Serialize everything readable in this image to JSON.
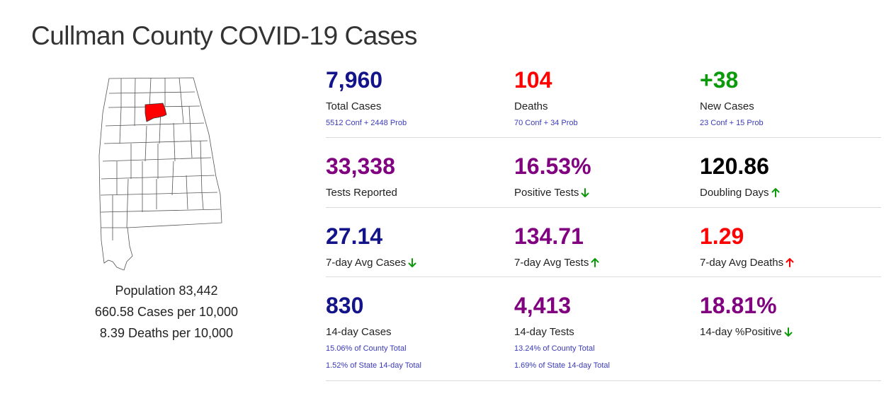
{
  "page": {
    "title": "Cullman County COVID-19 Cases"
  },
  "colors": {
    "navy": "#14148a",
    "red": "#ff0000",
    "green": "#0a9a0a",
    "purple": "#800080",
    "black": "#000000",
    "link": "#3a3ab8"
  },
  "map": {
    "highlighted_county": "Cullman",
    "highlight_color": "#ff0000"
  },
  "county": {
    "population": "Population 83,442",
    "cases_per_10k": "660.58 Cases per 10,000",
    "deaths_per_10k": "8.39 Deaths per 10,000"
  },
  "stats": {
    "total_cases": {
      "value": "7,960",
      "label": "Total Cases",
      "sub": "5512 Conf + 2448 Prob",
      "color": "#14148a"
    },
    "deaths": {
      "value": "104",
      "label": "Deaths",
      "sub": "70 Conf + 34 Prob",
      "color": "#ff0000"
    },
    "new_cases": {
      "value": "+38",
      "label": "New Cases",
      "sub": "23 Conf + 15 Prob",
      "color": "#0a9a0a"
    },
    "tests_reported": {
      "value": "33,338",
      "label": "Tests Reported",
      "color": "#800080"
    },
    "positive_tests": {
      "value": "16.53%",
      "label": "Positive Tests",
      "color": "#800080",
      "trend": "down",
      "trend_color": "#0a9a0a",
      "icon": "arrow-down-icon"
    },
    "doubling_days": {
      "value": "120.86",
      "label": "Doubling Days",
      "color": "#000000",
      "trend": "up",
      "trend_color": "#0a9a0a",
      "icon": "arrow-up-icon"
    },
    "avg_cases_7": {
      "value": "27.14",
      "label": "7-day Avg Cases",
      "color": "#14148a",
      "trend": "down",
      "trend_color": "#0a9a0a",
      "icon": "arrow-down-icon"
    },
    "avg_tests_7": {
      "value": "134.71",
      "label": "7-day Avg Tests",
      "color": "#800080",
      "trend": "up",
      "trend_color": "#0a9a0a",
      "icon": "arrow-up-icon"
    },
    "avg_deaths_7": {
      "value": "1.29",
      "label": "7-day Avg Deaths",
      "color": "#ff0000",
      "trend": "up",
      "trend_color": "#ff0000",
      "icon": "arrow-up-icon"
    },
    "cases_14": {
      "value": "830",
      "label": "14-day Cases",
      "sub1": "15.06% of County Total",
      "sub2": "1.52% of State 14-day Total",
      "color": "#14148a"
    },
    "tests_14": {
      "value": "4,413",
      "label": "14-day Tests",
      "sub1": "13.24% of County Total",
      "sub2": "1.69% of State 14-day Total",
      "color": "#800080"
    },
    "positive_14": {
      "value": "18.81%",
      "label": "14-day %Positive",
      "color": "#800080",
      "trend": "down",
      "trend_color": "#0a9a0a",
      "icon": "arrow-down-icon"
    }
  }
}
